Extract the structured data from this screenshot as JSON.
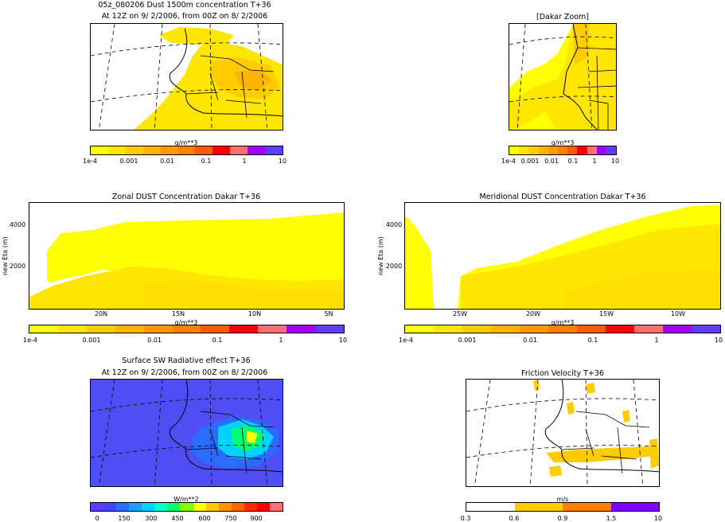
{
  "page_title": "05z_080206 Dust 1500m concentration T+36",
  "panel1": {
    "subtitle": "At 12Z on 9/ 2/2006, from 00Z on 8/ 2/2006",
    "cbar_label": "g/m**3",
    "cbar_ticks": [
      "1e-4",
      "0.001",
      "0.01",
      "0.1",
      "1",
      "10"
    ]
  },
  "panel2": {
    "title": "[Dakar Zoom]",
    "cbar_label": "g/m**3",
    "cbar_ticks": [
      "1e-4",
      "0.001",
      "0.01",
      "0.1",
      "1",
      "10"
    ]
  },
  "panel3": {
    "title": "Zonal DUST Concentration Dakar T+36",
    "ylabel": "new Eta (m)",
    "yticks": [
      "4000",
      "2000"
    ],
    "xticks": [
      "20N",
      "15N",
      "10N",
      "5N"
    ],
    "cbar_label": "g/m**3",
    "cbar_ticks": [
      "1e-4",
      "0.001",
      "0.01",
      "0.1",
      "1",
      "10"
    ]
  },
  "panel4": {
    "title": "Meridional DUST Concentration Dakar T+36",
    "ylabel": "new Eta (m)",
    "yticks": [
      "4000",
      "2000"
    ],
    "xticks": [
      "25W",
      "20W",
      "15W",
      "10W"
    ],
    "cbar_label": "g/m**3",
    "cbar_ticks": [
      "1e-4",
      "0.001",
      "0.01",
      "0.1",
      "1",
      "10"
    ]
  },
  "panel5": {
    "title": "Surface SW Radiative effect T+36",
    "subtitle": "At 12Z on 9/ 2/2006, from 00Z on 8/ 2/2006",
    "cbar_label": "W/m**2",
    "cbar_ticks": [
      "0",
      "150",
      "300",
      "450",
      "600",
      "750",
      "900"
    ]
  },
  "panel6": {
    "title": "Friction Velocity T+36",
    "cbar_label": "m/s",
    "cbar_ticks": [
      "0.3",
      "0.6",
      "0.9",
      "1.5",
      "10"
    ]
  },
  "colors": {
    "dust_scale": [
      "#ffff00",
      "#ffe600",
      "#ffcc00",
      "#ffb400",
      "#ff9a00",
      "#ff7f00",
      "#ff5a00",
      "#ff0000",
      "#ff6f6f",
      "#a000ff",
      "#5f3cff"
    ],
    "sw_scale": [
      "#5f3cff",
      "#3f46ff",
      "#2a6cff",
      "#1e9cff",
      "#00d2ff",
      "#00ffd0",
      "#00ff6e",
      "#7dff00",
      "#ffff00",
      "#ffc800",
      "#ff9600",
      "#ff6400",
      "#ff2a00",
      "#ff0000",
      "#ff7070"
    ],
    "ustar_scale": [
      "#ffffff",
      "#ffcc00",
      "#ff8000",
      "#8000ff"
    ],
    "field_yellow": "#ffff00",
    "field_orange": "#ffcc00",
    "field_blue": "#4e4ef5"
  },
  "chart_data": [
    {
      "type": "heatmap",
      "title": "05z_080206 Dust 1500m concentration T+36",
      "subtitle": "At 12Z on 9/ 2/2006, from 00Z on 8/ 2/2006",
      "colorbar": {
        "label": "g/m**3",
        "ticks": [
          0.0001,
          0.001,
          0.01,
          0.1,
          1,
          10
        ],
        "scale": "log"
      }
    },
    {
      "type": "heatmap",
      "title": "[Dakar Zoom]",
      "colorbar": {
        "label": "g/m**3",
        "ticks": [
          0.0001,
          0.001,
          0.01,
          0.1,
          1,
          10
        ],
        "scale": "log"
      }
    },
    {
      "type": "area",
      "title": "Zonal DUST Concentration Dakar T+36",
      "ylabel": "new Eta (m)",
      "xticks": [
        "20N",
        "15N",
        "10N",
        "5N"
      ],
      "yticks": [
        2000,
        4000
      ],
      "colorbar": {
        "label": "g/m**3",
        "ticks": [
          0.0001,
          0.001,
          0.01,
          0.1,
          1,
          10
        ],
        "scale": "log"
      }
    },
    {
      "type": "area",
      "title": "Meridional DUST Concentration Dakar T+36",
      "ylabel": "new Eta (m)",
      "xticks": [
        "25W",
        "20W",
        "15W",
        "10W"
      ],
      "yticks": [
        2000,
        4000
      ],
      "colorbar": {
        "label": "g/m**3",
        "ticks": [
          0.0001,
          0.001,
          0.01,
          0.1,
          1,
          10
        ],
        "scale": "log"
      }
    },
    {
      "type": "heatmap",
      "title": "Surface SW Radiative effect T+36",
      "subtitle": "At 12Z on 9/ 2/2006, from 00Z on 8/ 2/2006",
      "colorbar": {
        "label": "W/m**2",
        "ticks": [
          0,
          150,
          300,
          450,
          600,
          750,
          900
        ]
      }
    },
    {
      "type": "heatmap",
      "title": "Friction Velocity T+36",
      "colorbar": {
        "label": "m/s",
        "ticks": [
          0.3,
          0.6,
          0.9,
          1.5,
          10
        ]
      }
    }
  ]
}
